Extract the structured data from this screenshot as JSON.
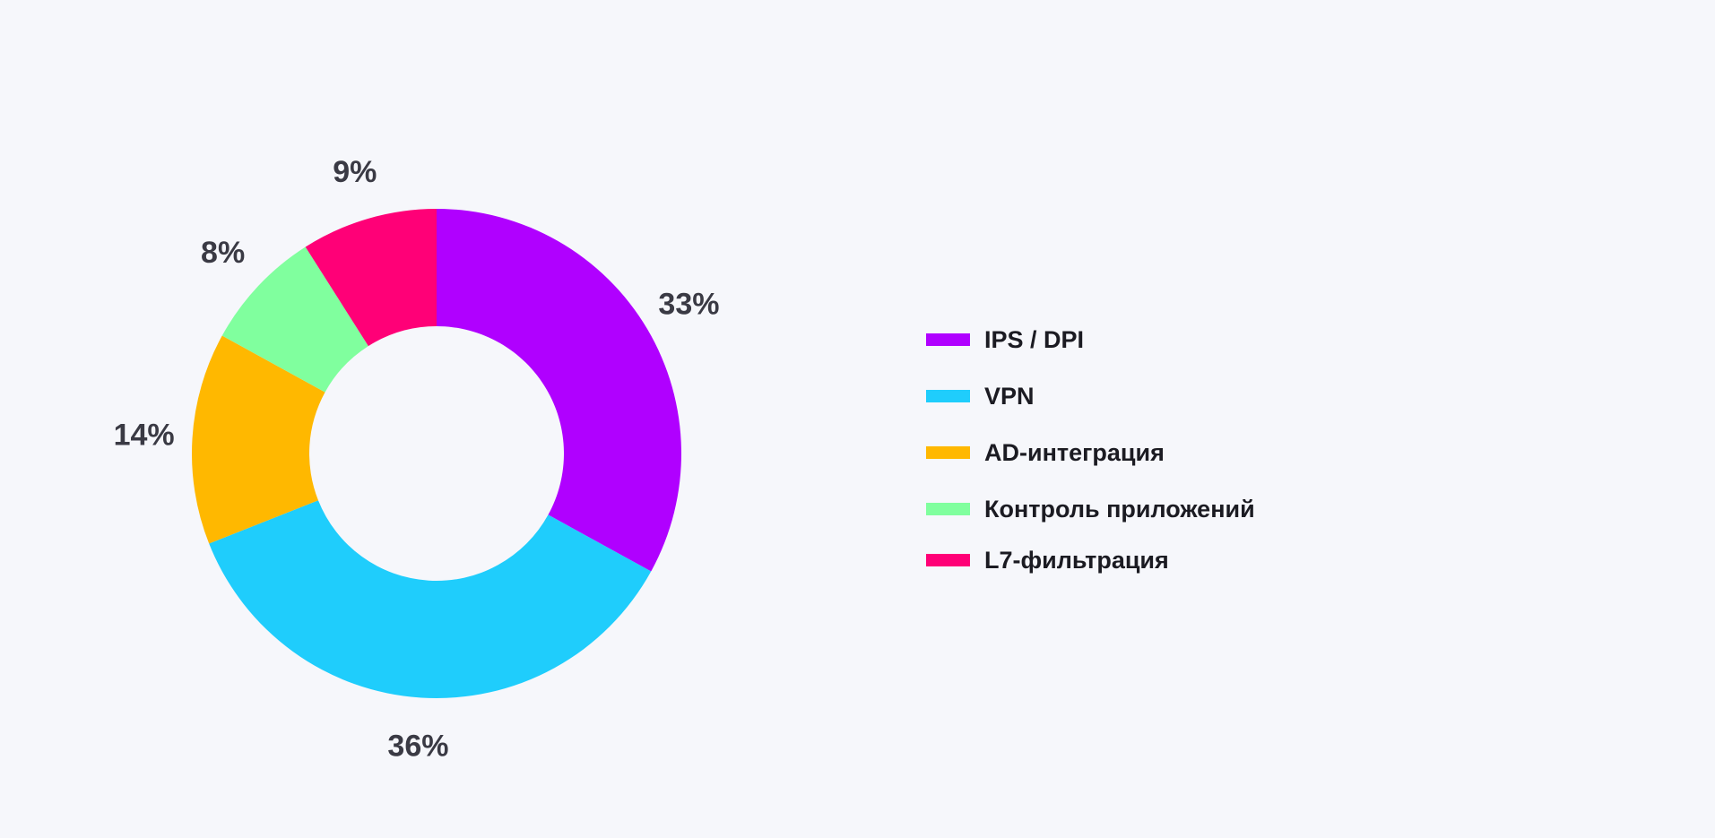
{
  "chart_data": {
    "type": "pie",
    "variant": "donut",
    "title": "",
    "slices": [
      {
        "label": "IPS / DPI",
        "value": 33,
        "value_label": "33%",
        "color": "#b000ff"
      },
      {
        "label": "VPN",
        "value": 36,
        "value_label": "36%",
        "color": "#1fcdfc"
      },
      {
        "label": "AD-интеграция",
        "value": 14,
        "value_label": "14%",
        "color": "#ffb800"
      },
      {
        "label": "Контроль приложений",
        "value": 8,
        "value_label": "8%",
        "color": "#80ff9e"
      },
      {
        "label": "L7-фильтрация",
        "value": 9,
        "value_label": "9%",
        "color": "#ff0077"
      }
    ],
    "legend_position": "right",
    "start_angle": "top",
    "direction": "clockwise"
  }
}
